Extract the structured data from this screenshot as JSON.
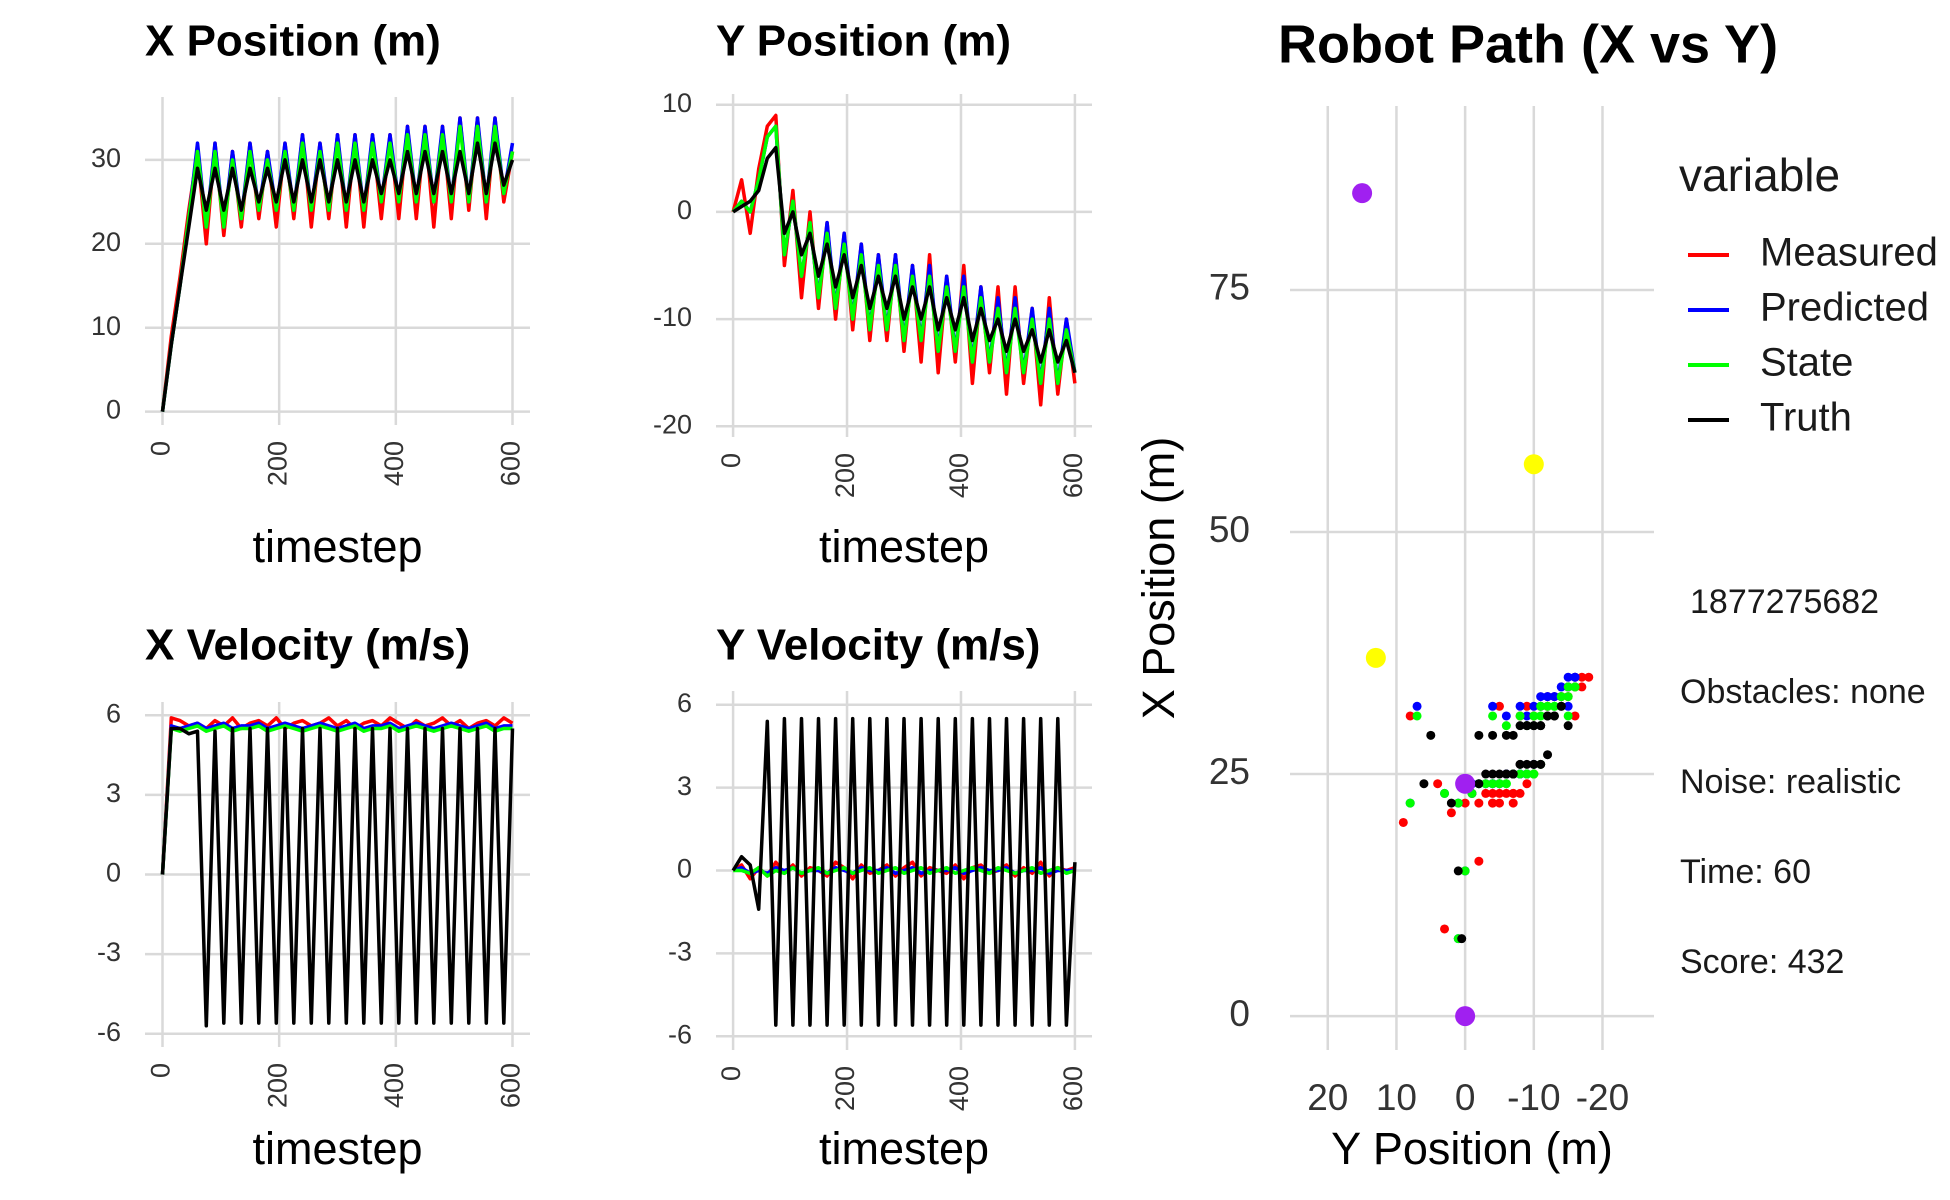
{
  "chart_data": [
    {
      "type": "line",
      "title": "X Position (m)",
      "xlabel": "timestep",
      "x": [
        0,
        15,
        30,
        45,
        60,
        75,
        90,
        105,
        120,
        135,
        150,
        165,
        180,
        195,
        210,
        225,
        240,
        255,
        270,
        285,
        300,
        315,
        330,
        345,
        360,
        375,
        390,
        405,
        420,
        435,
        450,
        465,
        480,
        495,
        510,
        525,
        540,
        555,
        570,
        585,
        600
      ],
      "xlim": [
        -30,
        630
      ],
      "xticks": [
        0,
        200,
        400,
        600
      ],
      "ylim": [
        -1.6,
        37.5
      ],
      "yticks": [
        0,
        10,
        20,
        30
      ],
      "grid": true,
      "series": [
        {
          "color": "#ff0000",
          "values": [
            0,
            9,
            16,
            24,
            31,
            20,
            32,
            21,
            31,
            22,
            32,
            23,
            31,
            22,
            32,
            23,
            33,
            22,
            32,
            23,
            33,
            22,
            33,
            22,
            33,
            23,
            33,
            23,
            34,
            23,
            34,
            22,
            34,
            23,
            35,
            24,
            35,
            23,
            35,
            25,
            31
          ]
        },
        {
          "color": "#0000ff",
          "values": [
            0,
            8,
            15,
            23,
            32,
            22,
            32,
            22,
            31,
            23,
            32,
            24,
            31,
            24,
            32,
            24,
            33,
            24,
            32,
            24,
            33,
            24,
            33,
            24,
            33,
            25,
            33,
            25,
            34,
            25,
            34,
            25,
            34,
            25,
            35,
            25,
            35,
            25,
            35,
            26,
            32
          ]
        },
        {
          "color": "#00ff00",
          "values": [
            0,
            8,
            15,
            23,
            31,
            22,
            31,
            22,
            30,
            23,
            31,
            24,
            30,
            24,
            31,
            24,
            32,
            24,
            31,
            24,
            32,
            24,
            32,
            24,
            32,
            25,
            32,
            25,
            33,
            25,
            33,
            25,
            33,
            25,
            34,
            25,
            34,
            25,
            34,
            26,
            31
          ]
        },
        {
          "color": "#000000",
          "values": [
            0,
            8,
            15,
            22,
            29,
            24,
            29,
            24,
            29,
            24,
            29,
            25,
            29,
            25,
            30,
            25,
            30,
            25,
            30,
            25,
            30,
            25,
            30,
            25,
            30,
            26,
            30,
            26,
            31,
            26,
            31,
            26,
            31,
            26,
            31,
            26,
            32,
            26,
            32,
            27,
            30
          ]
        }
      ]
    },
    {
      "type": "line",
      "title": "Y Position (m)",
      "xlabel": "timestep",
      "x": [
        0,
        15,
        30,
        45,
        60,
        75,
        90,
        105,
        120,
        135,
        150,
        165,
        180,
        195,
        210,
        225,
        240,
        255,
        270,
        285,
        300,
        315,
        330,
        345,
        360,
        375,
        390,
        405,
        420,
        435,
        450,
        465,
        480,
        495,
        510,
        525,
        540,
        555,
        570,
        585,
        600
      ],
      "xlim": [
        -30,
        630
      ],
      "xticks": [
        0,
        200,
        400,
        600
      ],
      "ylim": [
        -21,
        11
      ],
      "yticks": [
        -20,
        -10,
        0,
        10
      ],
      "grid": true,
      "series": [
        {
          "color": "#ff0000",
          "values": [
            0,
            3,
            -2,
            4,
            8,
            9,
            -5,
            2,
            -8,
            0,
            -9,
            -1,
            -10,
            -2,
            -11,
            -3,
            -12,
            -4,
            -12,
            -4,
            -13,
            -5,
            -14,
            -4,
            -15,
            -6,
            -14,
            -5,
            -16,
            -7,
            -15,
            -7,
            -17,
            -7,
            -16,
            -9,
            -18,
            -8,
            -17,
            -10,
            -16
          ]
        },
        {
          "color": "#0000ff",
          "values": [
            0,
            1,
            0,
            3,
            7,
            8,
            -4,
            1,
            -6,
            -1,
            -8,
            -1,
            -9,
            -2,
            -10,
            -3,
            -11,
            -4,
            -11,
            -4,
            -12,
            -5,
            -12,
            -5,
            -13,
            -6,
            -13,
            -6,
            -14,
            -7,
            -14,
            -8,
            -15,
            -8,
            -15,
            -9,
            -16,
            -9,
            -16,
            -10,
            -15
          ]
        },
        {
          "color": "#00ff00",
          "values": [
            0,
            1,
            0,
            3,
            7,
            8,
            -4,
            1,
            -6,
            -1,
            -8,
            -2,
            -9,
            -3,
            -10,
            -4,
            -11,
            -5,
            -11,
            -5,
            -12,
            -6,
            -12,
            -6,
            -13,
            -7,
            -13,
            -7,
            -14,
            -8,
            -14,
            -9,
            -15,
            -9,
            -15,
            -10,
            -16,
            -10,
            -16,
            -11,
            -15
          ]
        },
        {
          "color": "#000000",
          "values": [
            0,
            0.5,
            1,
            2,
            5,
            6,
            -2,
            0,
            -4,
            -2,
            -6,
            -3,
            -7,
            -4,
            -8,
            -5,
            -9,
            -6,
            -9,
            -6,
            -10,
            -7,
            -10,
            -7,
            -11,
            -8,
            -11,
            -8,
            -12,
            -9,
            -12,
            -10,
            -13,
            -10,
            -13,
            -11,
            -14,
            -11,
            -14,
            -12,
            -15
          ]
        }
      ]
    },
    {
      "type": "line",
      "title": "X Velocity (m/s)",
      "xlabel": "timestep",
      "x": [
        0,
        15,
        30,
        45,
        60,
        75,
        90,
        105,
        120,
        135,
        150,
        165,
        180,
        195,
        210,
        225,
        240,
        255,
        270,
        285,
        300,
        315,
        330,
        345,
        360,
        375,
        390,
        405,
        420,
        435,
        450,
        465,
        480,
        495,
        510,
        525,
        540,
        555,
        570,
        585,
        600
      ],
      "xlim": [
        -30,
        630
      ],
      "xticks": [
        0,
        200,
        400,
        600
      ],
      "ylim": [
        -6.5,
        6.5
      ],
      "yticks": [
        -6,
        -3,
        0,
        3,
        6
      ],
      "grid": true,
      "series": [
        {
          "color": "#ff0000",
          "values": [
            0,
            5.9,
            5.8,
            5.6,
            5.7,
            5.5,
            5.8,
            5.6,
            5.9,
            5.5,
            5.7,
            5.8,
            5.6,
            5.9,
            5.5,
            5.7,
            5.8,
            5.6,
            5.7,
            5.9,
            5.6,
            5.8,
            5.5,
            5.7,
            5.8,
            5.6,
            5.9,
            5.7,
            5.5,
            5.8,
            5.6,
            5.7,
            5.9,
            5.6,
            5.8,
            5.5,
            5.7,
            5.8,
            5.6,
            5.9,
            5.7
          ]
        },
        {
          "color": "#0000ff",
          "values": [
            0,
            5.6,
            5.5,
            5.6,
            5.7,
            5.5,
            5.6,
            5.7,
            5.5,
            5.6,
            5.6,
            5.7,
            5.5,
            5.6,
            5.7,
            5.6,
            5.5,
            5.6,
            5.7,
            5.6,
            5.5,
            5.6,
            5.7,
            5.5,
            5.6,
            5.6,
            5.7,
            5.5,
            5.6,
            5.7,
            5.6,
            5.5,
            5.6,
            5.7,
            5.6,
            5.5,
            5.6,
            5.7,
            5.5,
            5.6,
            5.6
          ]
        },
        {
          "color": "#00ff00",
          "values": [
            0,
            5.5,
            5.4,
            5.5,
            5.6,
            5.4,
            5.5,
            5.6,
            5.4,
            5.5,
            5.5,
            5.6,
            5.4,
            5.5,
            5.6,
            5.5,
            5.4,
            5.5,
            5.6,
            5.5,
            5.4,
            5.5,
            5.6,
            5.4,
            5.5,
            5.5,
            5.6,
            5.4,
            5.5,
            5.6,
            5.5,
            5.4,
            5.5,
            5.6,
            5.5,
            5.4,
            5.5,
            5.6,
            5.4,
            5.5,
            5.5
          ]
        },
        {
          "color": "#000000",
          "values": [
            0,
            5.5,
            5.5,
            5.3,
            5.4,
            -5.7,
            5.4,
            -5.6,
            5.5,
            -5.6,
            5.5,
            -5.6,
            5.5,
            -5.6,
            5.5,
            -5.6,
            5.5,
            -5.6,
            5.5,
            -5.6,
            5.5,
            -5.6,
            5.5,
            -5.6,
            5.5,
            -5.6,
            5.5,
            -5.6,
            5.5,
            -5.6,
            5.5,
            -5.6,
            5.5,
            -5.6,
            5.5,
            -5.6,
            5.5,
            -5.6,
            5.5,
            -5.6,
            5.5
          ]
        }
      ]
    },
    {
      "type": "line",
      "title": "Y Velocity (m/s)",
      "xlabel": "timestep",
      "x": [
        0,
        15,
        30,
        45,
        60,
        75,
        90,
        105,
        120,
        135,
        150,
        165,
        180,
        195,
        210,
        225,
        240,
        255,
        270,
        285,
        300,
        315,
        330,
        345,
        360,
        375,
        390,
        405,
        420,
        435,
        450,
        465,
        480,
        495,
        510,
        525,
        540,
        555,
        570,
        585,
        600
      ],
      "xlim": [
        -30,
        630
      ],
      "xticks": [
        0,
        200,
        400,
        600
      ],
      "ylim": [
        -6.5,
        6.5
      ],
      "yticks": [
        -6,
        -3,
        0,
        3,
        6
      ],
      "grid": true,
      "series": [
        {
          "color": "#ff0000",
          "values": [
            0,
            0.2,
            -0.3,
            0.1,
            -0.2,
            0.3,
            -0.1,
            0.2,
            -0.2,
            0.1,
            0,
            -0.2,
            0.3,
            0.1,
            -0.3,
            0.2,
            -0.1,
            0,
            0.2,
            -0.2,
            0.1,
            0.3,
            -0.2,
            0.1,
            0,
            -0.1,
            0.2,
            -0.3,
            0.1,
            0.2,
            -0.1,
            0,
            0.2,
            -0.2,
            0.1,
            -0.1,
            0.3,
            -0.2,
            0.1,
            0,
            0.1
          ]
        },
        {
          "color": "#0000ff",
          "values": [
            0,
            0.1,
            -0.1,
            0,
            -0.1,
            0.1,
            0,
            0.1,
            -0.1,
            0,
            0,
            -0.1,
            0.1,
            0,
            -0.1,
            0.1,
            0,
            0,
            0.1,
            -0.1,
            0,
            0.1,
            -0.1,
            0,
            0,
            0,
            0.1,
            -0.1,
            0,
            0.1,
            0,
            0,
            0.1,
            -0.1,
            0,
            0,
            0.1,
            -0.1,
            0,
            0,
            0
          ]
        },
        {
          "color": "#00ff00",
          "values": [
            0,
            0,
            -0.1,
            0.1,
            -0.2,
            0,
            -0.1,
            0.1,
            -0.1,
            0,
            0.1,
            -0.1,
            0,
            0.1,
            -0.1,
            0,
            0.1,
            -0.1,
            0,
            0.1,
            -0.1,
            0,
            0.1,
            -0.1,
            0,
            0.1,
            -0.1,
            0,
            0.1,
            0,
            -0.1,
            0.1,
            0,
            -0.1,
            0,
            0.1,
            -0.1,
            0,
            0.1,
            -0.1,
            0
          ]
        },
        {
          "color": "#000000",
          "values": [
            0,
            0.5,
            0.2,
            -1.4,
            5.4,
            -5.6,
            5.5,
            -5.6,
            5.5,
            -5.6,
            5.5,
            -5.6,
            5.5,
            -5.6,
            5.5,
            -5.6,
            5.5,
            -5.6,
            5.5,
            -5.6,
            5.5,
            -5.6,
            5.5,
            -5.6,
            5.5,
            -5.6,
            5.5,
            -5.6,
            5.5,
            -5.6,
            5.5,
            -5.6,
            5.5,
            -5.6,
            5.5,
            -5.6,
            5.5,
            -5.6,
            5.5,
            -5.6,
            0.3
          ]
        }
      ]
    },
    {
      "type": "path",
      "title": "Robot Path (X vs Y)",
      "xlabel": "Y Position (m)",
      "ylabel": "X Position (m)",
      "xlim": [
        25.5,
        -27.5
      ],
      "xticks": [
        20,
        10,
        0,
        -10,
        -20
      ],
      "ylim": [
        -3.5,
        94
      ],
      "yticks": [
        0,
        25,
        50,
        75
      ],
      "grid": true,
      "legend_title": "variable",
      "series": [
        {
          "name": "Measured",
          "color": "#ff0000"
        },
        {
          "name": "Predicted",
          "color": "#0000ff"
        },
        {
          "name": "State",
          "color": "#00ff00"
        },
        {
          "name": "Truth",
          "color": "#000000"
        }
      ],
      "markers": [
        {
          "x": 15,
          "y": 85,
          "color": "#a020f0"
        },
        {
          "x": -10,
          "y": 57,
          "color": "#ffff00"
        },
        {
          "x": 13,
          "y": 37,
          "color": "#ffff00"
        },
        {
          "x": 0,
          "y": 24,
          "color": "#a020f0"
        },
        {
          "x": 0,
          "y": 0,
          "color": "#a020f0"
        }
      ],
      "annotations": [
        "1877275682",
        "Obstacles: none",
        "Noise: realistic",
        "Time: 60",
        "Score: 432"
      ]
    }
  ]
}
